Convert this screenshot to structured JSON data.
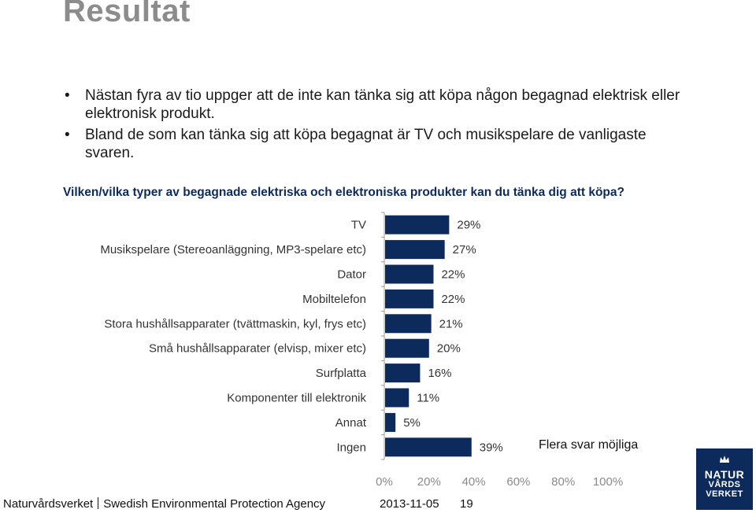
{
  "title": "Resultat",
  "bullets": [
    "Nästan fyra av tio uppger att de inte kan tänka sig att köpa någon begagnad elektrisk eller elektronisk produkt.",
    "Bland de som kan tänka sig att köpa begagnat är TV och musikspelare de vanligaste svaren."
  ],
  "question": "Vilken/vilka typer av begagnade elektriska och elektroniska produkter kan du tänka dig att köpa?",
  "note": "Flera svar möjliga",
  "footer": {
    "org_sv": "Naturvårdsverket",
    "org_en": "Swedish Environmental Protection Agency",
    "date": "2013-11-05",
    "page": "19"
  },
  "logo": {
    "line1": "NATUR",
    "line2": "VÅRDS",
    "line3": "VERKET"
  },
  "colors": {
    "bar": "#0d2a5c",
    "question": "#0d2a5c",
    "title": "#8c8c8c"
  },
  "chart_data": {
    "type": "bar",
    "orientation": "horizontal",
    "categories": [
      "TV",
      "Musikspelare (Stereoanläggning, MP3-spelare etc)",
      "Dator",
      "Mobiltelefon",
      "Stora hushållsapparater (tvättmaskin, kyl, frys etc)",
      "Små hushållsapparater (elvisp, mixer etc)",
      "Surfplatta",
      "Komponenter till elektronik",
      "Annat",
      "Ingen"
    ],
    "values": [
      29,
      27,
      22,
      22,
      21,
      20,
      16,
      11,
      5,
      39
    ],
    "value_labels": [
      "29%",
      "27%",
      "22%",
      "22%",
      "21%",
      "20%",
      "16%",
      "11%",
      "5%",
      "39%"
    ],
    "xlim": [
      0,
      100
    ],
    "xticks": [
      "0%",
      "20%",
      "40%",
      "60%",
      "80%",
      "100%"
    ],
    "grid": false
  }
}
